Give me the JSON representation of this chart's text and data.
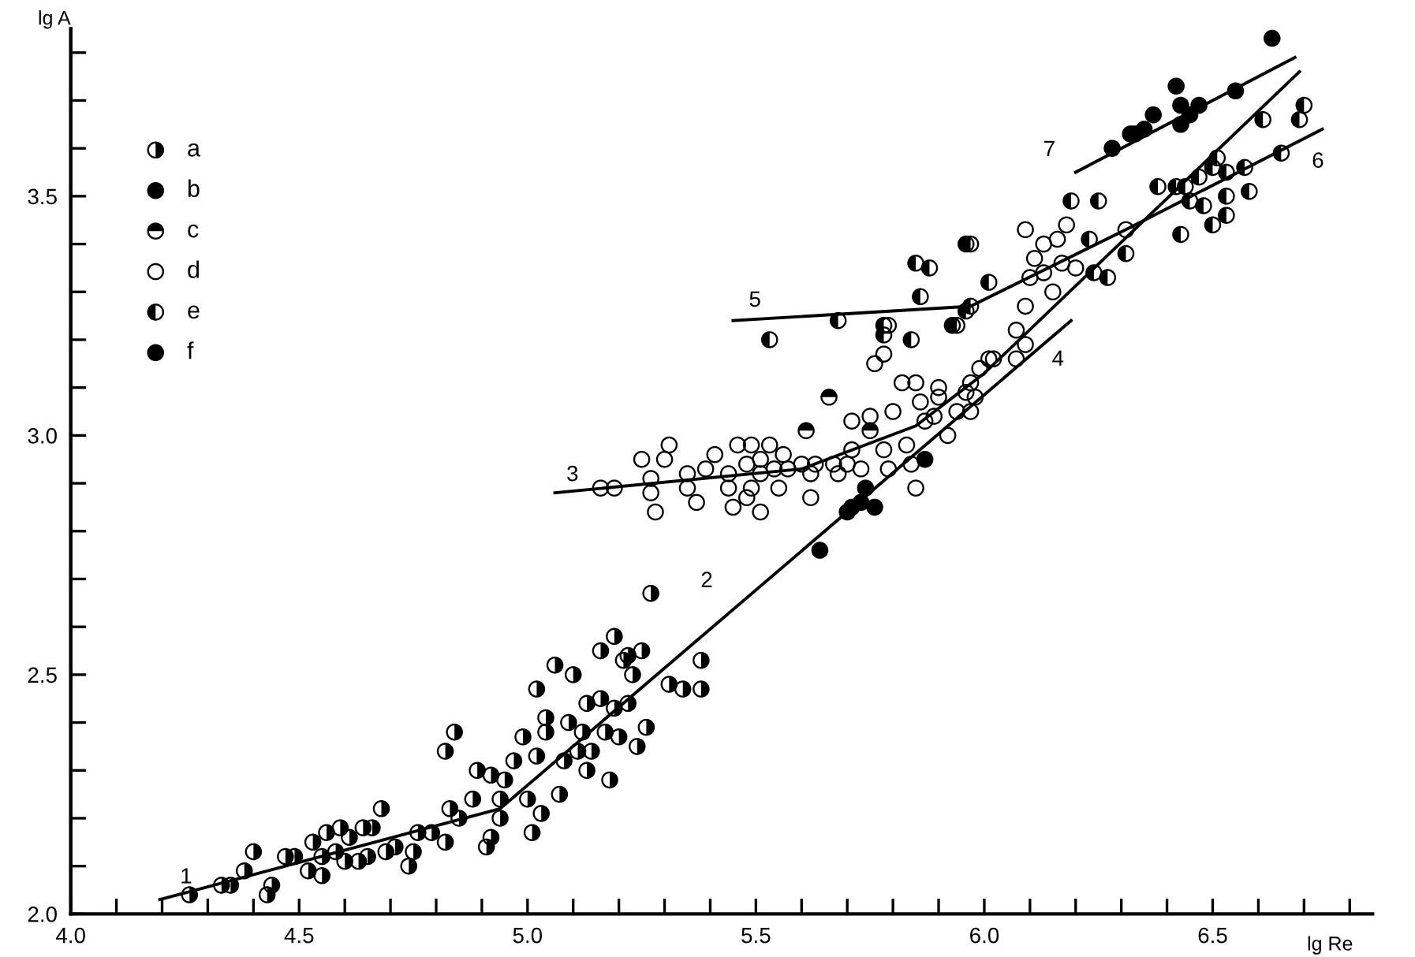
{
  "chart_data": {
    "type": "scatter",
    "xlabel": "lg Re",
    "ylabel": "lg A",
    "xlim": [
      4.0,
      6.85
    ],
    "ylim": [
      2.0,
      3.85
    ],
    "xticks": [
      {
        "value": 4.0,
        "label": "4.0"
      },
      {
        "value": 4.1,
        "label": null
      },
      {
        "value": 4.2,
        "label": null
      },
      {
        "value": 4.3,
        "label": null
      },
      {
        "value": 4.4,
        "label": null
      },
      {
        "value": 4.5,
        "label": "4.5"
      },
      {
        "value": 4.6,
        "label": null
      },
      {
        "value": 4.7,
        "label": null
      },
      {
        "value": 4.8,
        "label": null
      },
      {
        "value": 4.9,
        "label": null
      },
      {
        "value": 5.0,
        "label": "5.0"
      },
      {
        "value": 5.1,
        "label": null
      },
      {
        "value": 5.2,
        "label": null
      },
      {
        "value": 5.3,
        "label": null
      },
      {
        "value": 5.4,
        "label": null
      },
      {
        "value": 5.5,
        "label": "5.5"
      },
      {
        "value": 5.6,
        "label": null
      },
      {
        "value": 5.7,
        "label": null
      },
      {
        "value": 5.8,
        "label": null
      },
      {
        "value": 5.9,
        "label": null
      },
      {
        "value": 6.0,
        "label": "6.0"
      },
      {
        "value": 6.1,
        "label": null
      },
      {
        "value": 6.2,
        "label": null
      },
      {
        "value": 6.3,
        "label": null
      },
      {
        "value": 6.4,
        "label": null
      },
      {
        "value": 6.5,
        "label": "6.5"
      },
      {
        "value": 6.6,
        "label": null
      },
      {
        "value": 6.7,
        "label": null
      },
      {
        "value": 6.8,
        "label": null
      }
    ],
    "yticks": [
      {
        "value": 2.0,
        "label": "2.0"
      },
      {
        "value": 2.1,
        "label": null
      },
      {
        "value": 2.2,
        "label": null
      },
      {
        "value": 2.3,
        "label": null
      },
      {
        "value": 2.4,
        "label": null
      },
      {
        "value": 2.5,
        "label": "2.5"
      },
      {
        "value": 2.6,
        "label": null
      },
      {
        "value": 2.7,
        "label": null
      },
      {
        "value": 2.8,
        "label": null
      },
      {
        "value": 2.9,
        "label": null
      },
      {
        "value": 3.0,
        "label": "3.0"
      },
      {
        "value": 3.1,
        "label": null
      },
      {
        "value": 3.2,
        "label": null
      },
      {
        "value": 3.3,
        "label": null
      },
      {
        "value": 3.4,
        "label": null
      },
      {
        "value": 3.5,
        "label": "3.5"
      },
      {
        "value": 3.6,
        "label": null
      },
      {
        "value": 3.7,
        "label": null
      },
      {
        "value": 3.8,
        "label": null
      }
    ],
    "grid": false,
    "legend": "top left",
    "marker": "circle",
    "series": [
      {
        "name": "a",
        "color": "#000000",
        "x": [
          4.26,
          4.33,
          4.35,
          4.38,
          4.4,
          4.43,
          4.44,
          4.47,
          4.49,
          4.52,
          4.53,
          4.55,
          4.55,
          4.56,
          4.58,
          4.59,
          4.6,
          4.61,
          4.63,
          4.64,
          4.65,
          4.66,
          4.68,
          4.69,
          4.71,
          4.74,
          4.75,
          4.76,
          4.79,
          4.82,
          4.82,
          4.83,
          4.84,
          4.85,
          4.88,
          4.89,
          4.91,
          4.92,
          4.92,
          4.94,
          4.94,
          4.95,
          4.97,
          4.99,
          5.0,
          5.01,
          5.02,
          5.02,
          5.03,
          5.04,
          5.04,
          5.07,
          5.08,
          5.06,
          5.09,
          5.1,
          5.11,
          5.12,
          5.13,
          5.14,
          5.13,
          5.16,
          5.16,
          5.17,
          5.18,
          5.19,
          5.19,
          5.2,
          5.21,
          5.22,
          5.22,
          5.23,
          5.24,
          5.25,
          5.26,
          5.27,
          5.31,
          5.34,
          5.38,
          5.38
        ],
        "values": [
          2.04,
          2.06,
          2.06,
          2.09,
          2.13,
          2.04,
          2.06,
          2.12,
          2.12,
          2.09,
          2.15,
          2.08,
          2.12,
          2.17,
          2.13,
          2.18,
          2.11,
          2.16,
          2.11,
          2.18,
          2.12,
          2.18,
          2.22,
          2.13,
          2.14,
          2.1,
          2.13,
          2.17,
          2.17,
          2.15,
          2.34,
          2.22,
          2.38,
          2.2,
          2.24,
          2.3,
          2.14,
          2.16,
          2.29,
          2.24,
          2.2,
          2.28,
          2.32,
          2.37,
          2.24,
          2.17,
          2.47,
          2.33,
          2.21,
          2.41,
          2.38,
          2.25,
          2.32,
          2.52,
          2.4,
          2.5,
          2.34,
          2.38,
          2.3,
          2.34,
          2.44,
          2.45,
          2.55,
          2.38,
          2.28,
          2.58,
          2.43,
          2.37,
          2.53,
          2.44,
          2.54,
          2.5,
          2.35,
          2.55,
          2.39,
          2.67,
          2.48,
          2.47,
          2.53,
          2.47
        ]
      },
      {
        "name": "b",
        "color": "#000000",
        "x": [
          5.64,
          5.7,
          5.73,
          5.74,
          5.76,
          5.71,
          5.87
        ],
        "values": [
          2.76,
          2.84,
          2.86,
          2.89,
          2.85,
          2.85,
          2.95
        ]
      },
      {
        "name": "c",
        "color": "#000000",
        "x": [
          5.66,
          5.61,
          5.75
        ],
        "values": [
          3.08,
          3.01,
          3.01
        ]
      },
      {
        "name": "d",
        "color": "#000000",
        "x": [
          5.16,
          5.19,
          5.25,
          5.27,
          5.27,
          5.28,
          5.3,
          5.31,
          5.35,
          5.35,
          5.37,
          5.39,
          5.41,
          5.44,
          5.44,
          5.45,
          5.46,
          5.48,
          5.48,
          5.49,
          5.49,
          5.51,
          5.51,
          5.51,
          5.53,
          5.54,
          5.55,
          5.56,
          5.57,
          5.6,
          5.62,
          5.62,
          5.63,
          5.67,
          5.68,
          5.7,
          5.71,
          5.71,
          5.73,
          5.75,
          5.76,
          5.78,
          5.78,
          5.79,
          5.79,
          5.8,
          5.82,
          5.83,
          5.84,
          5.85,
          5.85,
          5.86,
          5.87,
          5.89,
          5.9,
          5.92,
          5.94,
          5.96,
          5.97,
          5.98,
          5.99,
          6.01,
          5.9,
          5.97,
          6.02,
          6.07,
          6.07,
          6.09,
          6.09,
          6.1,
          6.09,
          6.11,
          6.13,
          6.13,
          6.15,
          6.16,
          6.17,
          6.18,
          6.2,
          6.31
        ],
        "values": [
          2.89,
          2.89,
          2.95,
          2.91,
          2.88,
          2.84,
          2.95,
          2.98,
          2.92,
          2.89,
          2.86,
          2.93,
          2.96,
          2.92,
          2.89,
          2.85,
          2.98,
          2.94,
          2.87,
          2.98,
          2.89,
          2.95,
          2.92,
          2.84,
          2.98,
          2.93,
          2.89,
          2.96,
          2.93,
          2.94,
          2.92,
          2.87,
          2.94,
          2.94,
          2.92,
          2.94,
          3.03,
          2.97,
          2.93,
          3.04,
          3.15,
          3.17,
          2.97,
          3.23,
          2.93,
          3.05,
          3.11,
          2.98,
          2.94,
          2.89,
          3.11,
          3.07,
          3.03,
          3.04,
          3.08,
          3.0,
          3.05,
          3.09,
          3.05,
          3.08,
          3.14,
          3.16,
          3.1,
          3.11,
          3.16,
          3.16,
          3.22,
          3.19,
          3.27,
          3.33,
          3.43,
          3.37,
          3.4,
          3.34,
          3.3,
          3.41,
          3.36,
          3.44,
          3.35,
          3.43
        ]
      },
      {
        "name": "e",
        "color": "#000000",
        "x": [
          5.53,
          5.68,
          5.78,
          5.78,
          5.84,
          5.85,
          5.88,
          5.86,
          5.93,
          5.97,
          5.97,
          6.01,
          5.96,
          5.96,
          5.94,
          6.19,
          6.25,
          6.23,
          6.24,
          6.27,
          6.31,
          6.38,
          6.42,
          6.43,
          6.45,
          6.47,
          6.48,
          6.5,
          6.5,
          6.53,
          6.53,
          6.53,
          6.57,
          6.58,
          6.61,
          6.65,
          6.69,
          6.7,
          6.51,
          6.44
        ],
        "values": [
          3.2,
          3.24,
          3.23,
          3.21,
          3.2,
          3.36,
          3.35,
          3.29,
          3.23,
          3.4,
          3.27,
          3.32,
          3.4,
          3.26,
          3.23,
          3.49,
          3.49,
          3.41,
          3.34,
          3.33,
          3.38,
          3.52,
          3.52,
          3.42,
          3.49,
          3.54,
          3.48,
          3.56,
          3.44,
          3.46,
          3.5,
          3.55,
          3.56,
          3.51,
          3.66,
          3.59,
          3.66,
          3.69,
          3.58,
          3.52
        ]
      },
      {
        "name": "f",
        "color": "#000000",
        "x": [
          6.28,
          6.32,
          6.33,
          6.35,
          6.37,
          6.42,
          6.43,
          6.43,
          6.45,
          6.47,
          6.55,
          6.63
        ],
        "values": [
          3.6,
          3.63,
          3.63,
          3.64,
          3.67,
          3.73,
          3.69,
          3.65,
          3.67,
          3.69,
          3.72,
          3.83
        ]
      },
      {
        "type": "line",
        "color": "#000000",
        "marker": "none",
        "x": [
          4.195,
          4.94,
          6.19
        ],
        "values": [
          2.03,
          2.22,
          3.24
        ]
      },
      {
        "type": "line",
        "color": "#000000",
        "marker": "none",
        "x": [
          5.06,
          5.6,
          5.85,
          6.0,
          6.69
        ],
        "values": [
          2.88,
          2.93,
          3.02,
          3.13,
          3.76
        ]
      },
      {
        "type": "line",
        "color": "#000000",
        "marker": "none",
        "x": [
          5.45,
          5.97,
          6.31,
          6.74
        ],
        "values": [
          3.24,
          3.27,
          3.43,
          3.64
        ]
      },
      {
        "type": "line",
        "color": "#000000",
        "marker": "none",
        "x": [
          6.2,
          6.68
        ],
        "values": [
          3.55,
          3.79
        ]
      }
    ],
    "annotations": [
      {
        "text": "1",
        "x": 4.195,
        "y": 2.03
      },
      {
        "text": "2",
        "x": 5.45,
        "y": 2.64
      },
      {
        "text": "3",
        "x": 5.06,
        "y": 2.88
      },
      {
        "text": "4",
        "x": 6.19,
        "y": 3.24
      },
      {
        "text": "5",
        "x": 5.45,
        "y": 3.24
      },
      {
        "text": "6",
        "x": 6.74,
        "y": 3.64
      },
      {
        "text": "7",
        "x": 6.2,
        "y": 3.55
      }
    ]
  }
}
